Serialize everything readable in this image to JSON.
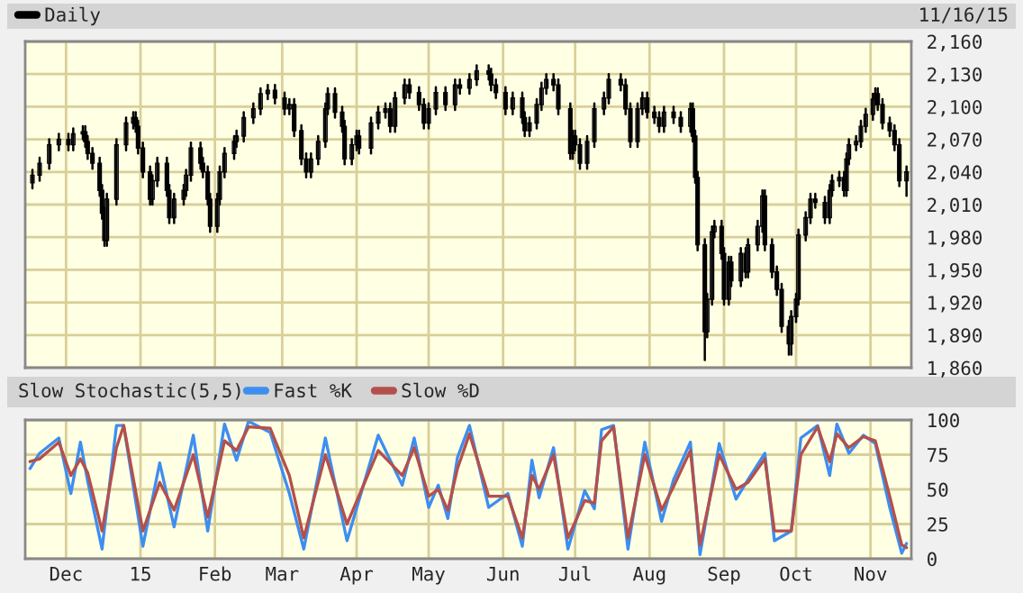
{
  "chart_data": [
    {
      "type": "candlestick",
      "legend": "top left",
      "grid": true,
      "tick_labels": "y",
      "annotations": [
        "11/16/15"
      ],
      "xlim": [
        "2014-11-14",
        "2015-11-18"
      ],
      "xticks": [
        {
          "value": "2014-12-01",
          "label": null
        },
        {
          "value": "2015-01-01",
          "label": null
        },
        {
          "value": "2015-02-01",
          "label": null
        },
        {
          "value": "2015-03-01",
          "label": null
        },
        {
          "value": "2015-04-01",
          "label": null
        },
        {
          "value": "2015-05-01",
          "label": null
        },
        {
          "value": "2015-06-01",
          "label": null
        },
        {
          "value": "2015-07-01",
          "label": null
        },
        {
          "value": "2015-08-01",
          "label": null
        },
        {
          "value": "2015-09-01",
          "label": null
        },
        {
          "value": "2015-10-01",
          "label": null
        },
        {
          "value": "2015-11-01",
          "label": null
        }
      ],
      "ylim": [
        1860,
        2160
      ],
      "yticks": [
        {
          "value": 1860,
          "label": "1,860"
        },
        {
          "value": 1890,
          "label": "1,890"
        },
        {
          "value": 1920,
          "label": "1,920"
        },
        {
          "value": 1950,
          "label": "1,950"
        },
        {
          "value": 1980,
          "label": "1,980"
        },
        {
          "value": 2010,
          "label": "2,010"
        },
        {
          "value": 2040,
          "label": "2,040"
        },
        {
          "value": 2070,
          "label": "2,070"
        },
        {
          "value": 2100,
          "label": "2,100"
        },
        {
          "value": 2130,
          "label": "2,130"
        },
        {
          "value": 2160,
          "label": "2,160"
        }
      ],
      "series": [
        {
          "name": "Daily",
          "color": "#000000",
          "x": [
            "2014-11-17",
            "2014-11-20",
            "2014-11-24",
            "2014-11-28",
            "2014-12-02",
            "2014-12-04",
            "2014-12-08",
            "2014-12-09",
            "2014-12-10",
            "2014-12-12",
            "2014-12-15",
            "2014-12-16",
            "2014-12-17",
            "2014-12-18",
            "2014-12-22",
            "2014-12-26",
            "2014-12-29",
            "2014-12-30",
            "2014-12-31",
            "2015-01-02",
            "2015-01-05",
            "2015-01-06",
            "2015-01-08",
            "2015-01-12",
            "2015-01-13",
            "2015-01-15",
            "2015-01-19",
            "2015-01-20",
            "2015-01-22",
            "2015-01-26",
            "2015-01-27",
            "2015-01-29",
            "2015-01-30",
            "2015-02-02",
            "2015-02-03",
            "2015-02-05",
            "2015-02-09",
            "2015-02-10",
            "2015-02-13",
            "2015-02-17",
            "2015-02-20",
            "2015-02-23",
            "2015-02-26",
            "2015-03-02",
            "2015-03-04",
            "2015-03-06",
            "2015-03-09",
            "2015-03-11",
            "2015-03-13",
            "2015-03-16",
            "2015-03-19",
            "2015-03-20",
            "2015-03-23",
            "2015-03-26",
            "2015-03-27",
            "2015-03-30",
            "2015-04-01",
            "2015-04-02",
            "2015-04-07",
            "2015-04-10",
            "2015-04-13",
            "2015-04-15",
            "2015-04-17",
            "2015-04-21",
            "2015-04-23",
            "2015-04-27",
            "2015-04-29",
            "2015-05-01",
            "2015-05-04",
            "2015-05-08",
            "2015-05-12",
            "2015-05-14",
            "2015-05-18",
            "2015-05-21",
            "2015-05-26",
            "2015-05-27",
            "2015-05-29",
            "2015-06-02",
            "2015-06-05",
            "2015-06-09",
            "2015-06-10",
            "2015-06-12",
            "2015-06-15",
            "2015-06-17",
            "2015-06-19",
            "2015-06-22",
            "2015-06-24",
            "2015-06-29",
            "2015-06-30",
            "2015-07-01",
            "2015-07-03",
            "2015-07-06",
            "2015-07-09",
            "2015-07-13",
            "2015-07-15",
            "2015-07-20",
            "2015-07-22",
            "2015-07-24",
            "2015-07-27",
            "2015-07-29",
            "2015-07-31",
            "2015-08-03",
            "2015-08-05",
            "2015-08-07",
            "2015-08-11",
            "2015-08-14",
            "2015-08-18",
            "2015-08-19",
            "2015-08-20",
            "2015-08-21",
            "2015-08-24",
            "2015-08-25",
            "2015-08-27",
            "2015-08-28",
            "2015-08-31",
            "2015-09-01",
            "2015-09-03",
            "2015-09-04",
            "2015-09-08",
            "2015-09-10",
            "2015-09-11",
            "2015-09-15",
            "2015-09-17",
            "2015-09-18",
            "2015-09-21",
            "2015-09-23",
            "2015-09-25",
            "2015-09-28",
            "2015-09-29",
            "2015-10-01",
            "2015-10-02",
            "2015-10-05",
            "2015-10-07",
            "2015-10-09",
            "2015-10-13",
            "2015-10-15",
            "2015-10-16",
            "2015-10-19",
            "2015-10-21",
            "2015-10-22",
            "2015-10-23",
            "2015-10-26",
            "2015-10-28",
            "2015-10-30",
            "2015-11-02",
            "2015-11-03",
            "2015-11-04",
            "2015-11-06",
            "2015-11-09",
            "2015-11-11",
            "2015-11-13",
            "2015-11-16"
          ],
          "ohlc": [
            [
              2030,
              2042,
              2025,
              2037
            ],
            [
              2037,
              2053,
              2032,
              2048
            ],
            [
              2048,
              2070,
              2043,
              2065
            ],
            [
              2065,
              2075,
              2060,
              2070
            ],
            [
              2070,
              2075,
              2060,
              2065
            ],
            [
              2065,
              2080,
              2060,
              2075
            ],
            [
              2075,
              2082,
              2070,
              2077
            ],
            [
              2077,
              2082,
              2063,
              2068
            ],
            [
              2068,
              2073,
              2052,
              2057
            ],
            [
              2057,
              2062,
              2043,
              2048
            ],
            [
              2048,
              2053,
              2018,
              2023
            ],
            [
              2023,
              2028,
              1997,
              2002
            ],
            [
              2002,
              2007,
              1972,
              1977
            ],
            [
              1977,
              2020,
              1972,
              2015
            ],
            [
              2015,
              2070,
              2010,
              2065
            ],
            [
              2065,
              2090,
              2060,
              2085
            ],
            [
              2085,
              2095,
              2080,
              2090
            ],
            [
              2090,
              2095,
              2077,
              2082
            ],
            [
              2082,
              2087,
              2057,
              2062
            ],
            [
              2062,
              2067,
              2035,
              2040
            ],
            [
              2040,
              2045,
              2010,
              2015
            ],
            [
              2015,
              2037,
              2010,
              2032
            ],
            [
              2032,
              2053,
              2027,
              2048
            ],
            [
              2048,
              2053,
              2018,
              2023
            ],
            [
              2023,
              2028,
              1993,
              1998
            ],
            [
              1998,
              2020,
              1993,
              2015
            ],
            [
              2015,
              2028,
              2010,
              2023
            ],
            [
              2023,
              2042,
              2018,
              2037
            ],
            [
              2037,
              2067,
              2032,
              2062
            ],
            [
              2062,
              2067,
              2043,
              2048
            ],
            [
              2048,
              2053,
              2035,
              2040
            ],
            [
              2040,
              2045,
              2010,
              2015
            ],
            [
              2015,
              2020,
              1985,
              1990
            ],
            [
              1990,
              2020,
              1985,
              2015
            ],
            [
              2015,
              2045,
              2010,
              2040
            ],
            [
              2040,
              2062,
              2035,
              2057
            ],
            [
              2057,
              2073,
              2052,
              2068
            ],
            [
              2068,
              2078,
              2063,
              2073
            ],
            [
              2073,
              2095,
              2068,
              2090
            ],
            [
              2090,
              2103,
              2085,
              2098
            ],
            [
              2098,
              2117,
              2093,
              2112
            ],
            [
              2112,
              2120,
              2107,
              2115
            ],
            [
              2115,
              2120,
              2103,
              2108
            ],
            [
              2108,
              2113,
              2093,
              2098
            ],
            [
              2098,
              2107,
              2093,
              2102
            ],
            [
              2102,
              2107,
              2073,
              2078
            ],
            [
              2078,
              2083,
              2047,
              2052
            ],
            [
              2052,
              2057,
              2035,
              2040
            ],
            [
              2040,
              2057,
              2035,
              2052
            ],
            [
              2052,
              2073,
              2047,
              2068
            ],
            [
              2068,
              2103,
              2063,
              2098
            ],
            [
              2098,
              2117,
              2093,
              2112
            ],
            [
              2112,
              2117,
              2090,
              2095
            ],
            [
              2095,
              2100,
              2077,
              2082
            ],
            [
              2082,
              2087,
              2047,
              2052
            ],
            [
              2052,
              2070,
              2047,
              2065
            ],
            [
              2065,
              2078,
              2060,
              2073
            ],
            [
              2073,
              2078,
              2057,
              2062
            ],
            [
              2062,
              2090,
              2057,
              2085
            ],
            [
              2085,
              2100,
              2080,
              2095
            ],
            [
              2095,
              2103,
              2090,
              2098
            ],
            [
              2098,
              2103,
              2077,
              2082
            ],
            [
              2082,
              2113,
              2077,
              2108
            ],
            [
              2108,
              2125,
              2103,
              2120
            ],
            [
              2120,
              2125,
              2108,
              2113
            ],
            [
              2113,
              2118,
              2097,
              2102
            ],
            [
              2102,
              2107,
              2080,
              2085
            ],
            [
              2085,
              2103,
              2080,
              2098
            ],
            [
              2098,
              2118,
              2093,
              2113
            ],
            [
              2113,
              2118,
              2097,
              2102
            ],
            [
              2102,
              2125,
              2097,
              2120
            ],
            [
              2120,
              2125,
              2112,
              2117
            ],
            [
              2117,
              2130,
              2112,
              2125
            ],
            [
              2125,
              2138,
              2120,
              2133
            ],
            [
              2133,
              2138,
              2125,
              2130
            ],
            [
              2130,
              2135,
              2115,
              2120
            ],
            [
              2120,
              2125,
              2108,
              2113
            ],
            [
              2113,
              2118,
              2093,
              2098
            ],
            [
              2098,
              2113,
              2093,
              2108
            ],
            [
              2108,
              2113,
              2085,
              2090
            ],
            [
              2090,
              2095,
              2073,
              2078
            ],
            [
              2078,
              2090,
              2073,
              2085
            ],
            [
              2085,
              2107,
              2080,
              2102
            ],
            [
              2102,
              2122,
              2097,
              2117
            ],
            [
              2117,
              2130,
              2112,
              2125
            ],
            [
              2125,
              2130,
              2115,
              2120
            ],
            [
              2120,
              2125,
              2093,
              2098
            ],
            [
              2098,
              2103,
              2052,
              2057
            ],
            [
              2057,
              2078,
              2052,
              2073
            ],
            [
              2073,
              2078,
              2060,
              2065
            ],
            [
              2065,
              2070,
              2043,
              2048
            ],
            [
              2048,
              2073,
              2043,
              2068
            ],
            [
              2068,
              2103,
              2063,
              2098
            ],
            [
              2098,
              2113,
              2093,
              2108
            ],
            [
              2108,
              2130,
              2103,
              2125
            ],
            [
              2125,
              2130,
              2115,
              2120
            ],
            [
              2120,
              2125,
              2093,
              2098
            ],
            [
              2098,
              2103,
              2063,
              2068
            ],
            [
              2068,
              2103,
              2063,
              2098
            ],
            [
              2098,
              2113,
              2093,
              2108
            ],
            [
              2108,
              2113,
              2090,
              2095
            ],
            [
              2095,
              2100,
              2085,
              2090
            ],
            [
              2090,
              2095,
              2077,
              2082
            ],
            [
              2082,
              2100,
              2077,
              2095
            ],
            [
              2095,
              2100,
              2085,
              2090
            ],
            [
              2090,
              2095,
              2077,
              2082
            ],
            [
              2082,
              2103,
              2077,
              2098
            ],
            [
              2098,
              2103,
              2068,
              2073
            ],
            [
              2073,
              2078,
              2030,
              2035
            ],
            [
              2035,
              2040,
              1968,
              1973
            ],
            [
              1973,
              1978,
              1867,
              1893
            ],
            [
              1893,
              1928,
              1888,
              1923
            ],
            [
              1923,
              1990,
              1918,
              1985
            ],
            [
              1985,
              1995,
              1980,
              1990
            ],
            [
              1990,
              1995,
              1960,
              1965
            ],
            [
              1965,
              1970,
              1918,
              1923
            ],
            [
              1923,
              1962,
              1918,
              1957
            ],
            [
              1957,
              1962,
              1935,
              1940
            ],
            [
              1940,
              1970,
              1935,
              1965
            ],
            [
              1965,
              1970,
              1943,
              1948
            ],
            [
              1948,
              1978,
              1943,
              1973
            ],
            [
              1973,
              1995,
              1968,
              1990
            ],
            [
              1990,
              2023,
              1985,
              2018
            ],
            [
              2018,
              2023,
              1968,
              1973
            ],
            [
              1973,
              1978,
              1943,
              1948
            ],
            [
              1948,
              1953,
              1927,
              1932
            ],
            [
              1932,
              1937,
              1893,
              1898
            ],
            [
              1898,
              1903,
              1872,
              1882
            ],
            [
              1882,
              1912,
              1872,
              1907
            ],
            [
              1907,
              1928,
              1902,
              1923
            ],
            [
              1923,
              1987,
              1918,
              1982
            ],
            [
              1982,
              2003,
              1977,
              1998
            ],
            [
              1998,
              2020,
              1993,
              2015
            ],
            [
              2015,
              2020,
              2007,
              2012
            ],
            [
              2012,
              2017,
              1993,
              1998
            ],
            [
              1998,
              2028,
              1993,
              2023
            ],
            [
              2023,
              2037,
              2018,
              2032
            ],
            [
              2032,
              2040,
              2027,
              2035
            ],
            [
              2035,
              2040,
              2018,
              2023
            ],
            [
              2023,
              2057,
              2018,
              2052
            ],
            [
              2052,
              2070,
              2047,
              2065
            ],
            [
              2065,
              2073,
              2060,
              2068
            ],
            [
              2068,
              2087,
              2063,
              2082
            ],
            [
              2082,
              2098,
              2077,
              2093
            ],
            [
              2093,
              2112,
              2088,
              2107
            ],
            [
              2107,
              2117,
              2102,
              2112
            ],
            [
              2112,
              2117,
              2097,
              2102
            ],
            [
              2102,
              2107,
              2080,
              2085
            ],
            [
              2085,
              2090,
              2073,
              2078
            ],
            [
              2078,
              2083,
              2060,
              2065
            ],
            [
              2065,
              2070,
              2027,
              2032
            ],
            [
              2032,
              2045,
              2018,
              2040
            ]
          ]
        }
      ]
    },
    {
      "type": "line",
      "title": "Slow Stochastic(5,5)",
      "legend": "top left",
      "grid": true,
      "xlim": [
        "2014-11-14",
        "2015-11-18"
      ],
      "xticks": [
        {
          "value": "2014-12-01",
          "label": "Dec"
        },
        {
          "value": "2015-01-01",
          "label": "15"
        },
        {
          "value": "2015-02-01",
          "label": "Feb"
        },
        {
          "value": "2015-03-01",
          "label": "Mar"
        },
        {
          "value": "2015-04-01",
          "label": "Apr"
        },
        {
          "value": "2015-05-01",
          "label": "May"
        },
        {
          "value": "2015-06-01",
          "label": "Jun"
        },
        {
          "value": "2015-07-01",
          "label": "Jul"
        },
        {
          "value": "2015-08-01",
          "label": "Aug"
        },
        {
          "value": "2015-09-01",
          "label": "Sep"
        },
        {
          "value": "2015-10-01",
          "label": "Oct"
        },
        {
          "value": "2015-11-01",
          "label": "Nov"
        }
      ],
      "ylim": [
        0,
        100
      ],
      "yticks": [
        0,
        25,
        50,
        75,
        100
      ],
      "x": [
        "2014-11-16",
        "2014-11-20",
        "2014-11-28",
        "2014-12-03",
        "2014-12-07",
        "2014-12-10",
        "2014-12-16",
        "2014-12-22",
        "2014-12-25",
        "2015-01-02",
        "2015-01-09",
        "2015-01-15",
        "2015-01-23",
        "2015-01-29",
        "2015-02-05",
        "2015-02-10",
        "2015-02-15",
        "2015-02-24",
        "2015-03-04",
        "2015-03-10",
        "2015-03-19",
        "2015-03-28",
        "2015-04-10",
        "2015-04-20",
        "2015-04-25",
        "2015-05-01",
        "2015-05-05",
        "2015-05-09",
        "2015-05-13",
        "2015-05-18",
        "2015-05-26",
        "2015-06-03",
        "2015-06-09",
        "2015-06-13",
        "2015-06-16",
        "2015-06-22",
        "2015-06-28",
        "2015-07-05",
        "2015-07-09",
        "2015-07-12",
        "2015-07-17",
        "2015-07-23",
        "2015-07-30",
        "2015-08-06",
        "2015-08-11",
        "2015-08-18",
        "2015-08-22",
        "2015-08-30",
        "2015-09-06",
        "2015-09-11",
        "2015-09-18",
        "2015-09-22",
        "2015-09-29",
        "2015-10-03",
        "2015-10-10",
        "2015-10-15",
        "2015-10-18",
        "2015-10-23",
        "2015-10-29",
        "2015-11-03",
        "2015-11-09",
        "2015-11-14",
        "2015-11-16"
      ],
      "series": [
        {
          "name": "Fast %K",
          "color": "#3d8ef0",
          "values": [
            65,
            76,
            87,
            47,
            84,
            56,
            7,
            96,
            96,
            9,
            69,
            23,
            89,
            20,
            97,
            71,
            99,
            91,
            47,
            7,
            87,
            13,
            89,
            53,
            87,
            37,
            53,
            29,
            73,
            96,
            37,
            47,
            9,
            71,
            44,
            80,
            7,
            49,
            36,
            93,
            96,
            7,
            84,
            27,
            57,
            84,
            3,
            83,
            43,
            57,
            76,
            13,
            20,
            87,
            96,
            60,
            97,
            76,
            89,
            83,
            37,
            4,
            11
          ]
        },
        {
          "name": "Slow %D",
          "color": "#b4504a",
          "values": [
            70,
            72,
            84,
            60,
            72,
            62,
            20,
            80,
            96,
            20,
            55,
            35,
            75,
            30,
            85,
            78,
            95,
            94,
            60,
            15,
            75,
            25,
            78,
            60,
            80,
            45,
            50,
            35,
            65,
            90,
            45,
            45,
            15,
            60,
            50,
            75,
            15,
            42,
            40,
            85,
            95,
            15,
            75,
            35,
            52,
            78,
            10,
            75,
            50,
            55,
            72,
            20,
            20,
            75,
            95,
            70,
            90,
            80,
            88,
            85,
            45,
            10,
            8
          ]
        }
      ]
    }
  ]
}
